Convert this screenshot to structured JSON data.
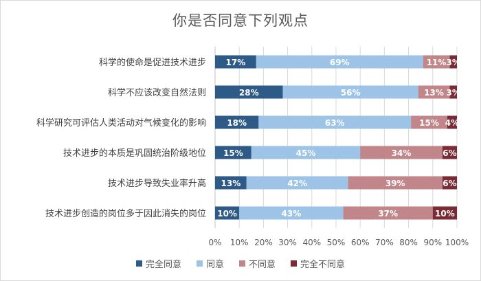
{
  "chart_data": {
    "type": "bar",
    "orientation": "horizontal",
    "stacked": true,
    "percent_stacked": true,
    "title": "你是否同意下列观点",
    "categories": [
      "科学的使命是促进技术进步",
      "科学不应该改变自然法则",
      "科学研究可评估人类活动对气候变化的影响",
      "技术进步的本质是巩固统治阶级地位",
      "技术进步导致失业率升高",
      "技术进步创造的岗位多于因此消失的岗位"
    ],
    "series": [
      {
        "name": "完全同意",
        "color": "#2e5a87",
        "values": [
          17,
          28,
          18,
          15,
          13,
          10
        ],
        "labels": [
          "17%",
          "28%",
          "18%",
          "15%",
          "13%",
          "10%"
        ]
      },
      {
        "name": "同意",
        "color": "#9dc3e6",
        "values": [
          69,
          56,
          63,
          45,
          42,
          43
        ],
        "labels": [
          "69%",
          "56%",
          "63%",
          "45%",
          "42%",
          "43%"
        ]
      },
      {
        "name": "不同意",
        "color": "#c0868a",
        "values": [
          11,
          13,
          15,
          34,
          39,
          37
        ],
        "labels": [
          "11%",
          "13%",
          "15%",
          "34%",
          "39%",
          "37%"
        ]
      },
      {
        "name": "完全不同意",
        "color": "#7a2b35",
        "values": [
          3,
          3,
          4,
          6,
          6,
          10
        ],
        "labels": [
          "3%",
          "3%",
          "4%",
          "6%",
          "6%",
          "10%"
        ]
      }
    ],
    "xlim": [
      0,
      100
    ],
    "x_ticks": [
      "0%",
      "10%",
      "20%",
      "30%",
      "40%",
      "50%",
      "60%",
      "70%",
      "80%",
      "90%",
      "100%"
    ],
    "grid": "vertical",
    "legend_position": "bottom"
  }
}
